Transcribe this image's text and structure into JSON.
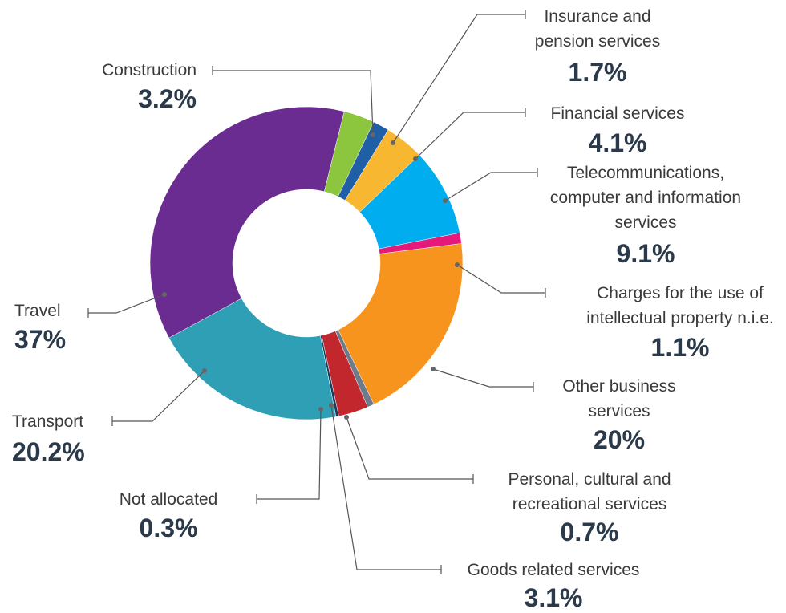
{
  "chart_data": {
    "type": "donut",
    "categories": [
      "Construction",
      "Insurance and\npension services",
      "Financial services",
      "Telecommunications,\ncomputer and information\nservices",
      "Charges for the use of\nintellectual property n.i.e.",
      "Other business\nservices",
      "Personal, cultural and\nrecreational services",
      "Goods related services",
      "Not allocated",
      "Transport",
      "Travel"
    ],
    "values": [
      3.2,
      1.7,
      4.1,
      9.1,
      1.1,
      20,
      0.7,
      3.1,
      0.3,
      20.2,
      37
    ],
    "value_labels": [
      "3.2%",
      "1.7%",
      "4.1%",
      "9.1%",
      "1.1%",
      "20%",
      "0.7%",
      "3.1%",
      "0.3%",
      "20.2%",
      "37%"
    ],
    "colors": [
      "#8cc63f",
      "#1f5fa6",
      "#f7b731",
      "#00aeef",
      "#e6197a",
      "#f7941d",
      "#6d7b8a",
      "#c1272d",
      "#1b3a5c",
      "#2e9fb5",
      "#6a2c91"
    ]
  }
}
